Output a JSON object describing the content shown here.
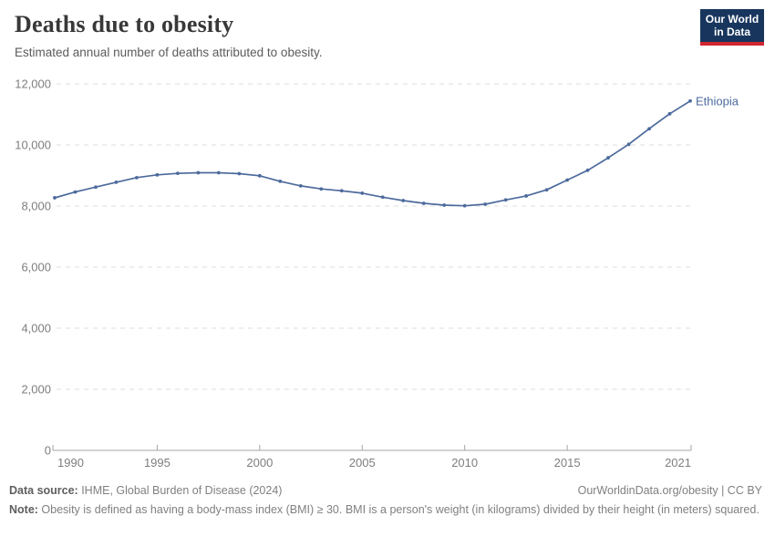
{
  "header": {
    "title": "Deaths due to obesity",
    "subtitle": "Estimated annual number of deaths attributed to obesity.",
    "logo": {
      "line1": "Our World",
      "line2": "in Data"
    }
  },
  "chart_data": {
    "type": "line",
    "title": "Deaths due to obesity",
    "subtitle": "Estimated annual number of deaths attributed to obesity.",
    "xlabel": "",
    "ylabel": "",
    "xlim": [
      1990,
      2021
    ],
    "ylim": [
      0,
      12000
    ],
    "grid": "horizontal-dashed",
    "legend_position": "end-of-line-label",
    "x_ticks": [
      1990,
      1995,
      2000,
      2005,
      2010,
      2015,
      2021
    ],
    "x_tick_labels": [
      "1990",
      "1995",
      "2000",
      "2005",
      "2010",
      "2015",
      "2021"
    ],
    "y_ticks": [
      0,
      2000,
      4000,
      6000,
      8000,
      10000,
      12000
    ],
    "y_tick_labels": [
      "0",
      "2,000",
      "4,000",
      "6,000",
      "8,000",
      "10,000",
      "12,000"
    ],
    "series": [
      {
        "name": "Ethiopia",
        "color": "#4C6A9C",
        "x": [
          1990,
          1991,
          1992,
          1993,
          1994,
          1995,
          1996,
          1997,
          1998,
          1999,
          2000,
          2001,
          2002,
          2003,
          2004,
          2005,
          2006,
          2007,
          2008,
          2009,
          2010,
          2011,
          2012,
          2013,
          2014,
          2015,
          2016,
          2017,
          2018,
          2019,
          2020,
          2021
        ],
        "values": [
          8270,
          8460,
          8620,
          8780,
          8930,
          9020,
          9070,
          9090,
          9090,
          9060,
          8990,
          8810,
          8660,
          8560,
          8500,
          8420,
          8290,
          8180,
          8090,
          8030,
          8010,
          8060,
          8200,
          8330,
          8530,
          8850,
          9170,
          9580,
          10020,
          10530,
          11020,
          11440
        ]
      }
    ]
  },
  "footer": {
    "datasource_label": "Data source:",
    "datasource_value": " IHME, Global Burden of Disease (2024)",
    "link": "OurWorldinData.org/obesity | CC BY",
    "note_label": "Note:",
    "note_value": " Obesity is defined as having a body-mass index (BMI) ≥ 30. BMI is a person's weight (in kilograms) divided by their height (in meters) squared."
  },
  "colors": {
    "line": "#4C6A9C",
    "entity_label": "#4C6A9C",
    "title": "#383838",
    "subtitle": "#5b5b5b",
    "tick_label": "#7e7e7e",
    "gridline": "#dedede",
    "axis": "#a5a5a5",
    "footer_text": "#808080",
    "logo_bg": "#18365d",
    "logo_red": "#d2262f"
  }
}
